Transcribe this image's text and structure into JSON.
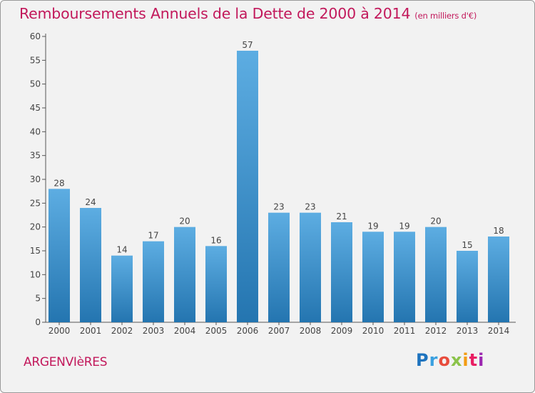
{
  "title": "Remboursements Annuels de la Dette de 2000 à 2014",
  "unit": "(en milliers d'€)",
  "commune": "ARGENVIèRES",
  "logo": "Proxiti",
  "colors": {
    "accent": "#c2185b",
    "bar_top": "#5dade2",
    "bar_bottom": "#2475b0",
    "background": "#f2f2f2"
  },
  "chart_data": {
    "type": "bar",
    "categories": [
      "2000",
      "2001",
      "2002",
      "2003",
      "2004",
      "2005",
      "2006",
      "2007",
      "2008",
      "2009",
      "2010",
      "2011",
      "2012",
      "2013",
      "2014"
    ],
    "values": [
      28,
      24,
      14,
      17,
      20,
      16,
      57,
      23,
      23,
      21,
      19,
      19,
      20,
      15,
      18
    ],
    "title": "Remboursements Annuels de la Dette de 2000 à 2014",
    "xlabel": "",
    "ylabel": "",
    "ylim": [
      0,
      60
    ],
    "yticks": [
      0,
      5,
      10,
      15,
      20,
      25,
      30,
      35,
      40,
      45,
      50,
      55,
      60
    ],
    "grid": false,
    "data_labels": true
  }
}
